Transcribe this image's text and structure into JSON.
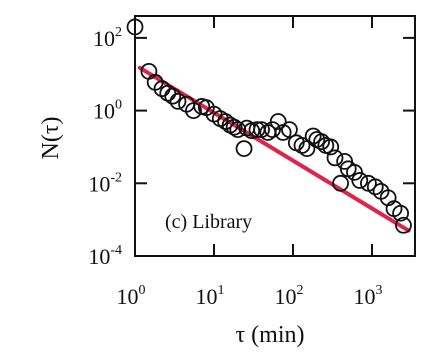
{
  "chart_data": {
    "type": "scatter",
    "panel_label": "(c) Library",
    "xlabel": "τ (min)",
    "ylabel": "N(τ)",
    "xscale": "log",
    "yscale": "log",
    "xlim": [
      1,
      3500
    ],
    "ylim": [
      0.0001,
      400
    ],
    "x_ticks": [
      {
        "value": 1,
        "base": "10",
        "exp": "0"
      },
      {
        "value": 10,
        "base": "10",
        "exp": "1"
      },
      {
        "value": 100,
        "base": "10",
        "exp": "2"
      },
      {
        "value": 1000,
        "base": "10",
        "exp": "3"
      }
    ],
    "y_ticks": [
      {
        "value": 0.0001,
        "base": "10",
        "exp": "-4"
      },
      {
        "value": 0.01,
        "base": "10",
        "exp": "-2"
      },
      {
        "value": 1,
        "base": "10",
        "exp": "0"
      },
      {
        "value": 100,
        "base": "10",
        "exp": "2"
      }
    ],
    "series": [
      {
        "marker": "open-circle",
        "color": "#111111",
        "points": [
          [
            1.0,
            200
          ],
          [
            1.5,
            12
          ],
          [
            1.8,
            6
          ],
          [
            2.2,
            4
          ],
          [
            2.6,
            3
          ],
          [
            3.0,
            2.5
          ],
          [
            3.5,
            1.8
          ],
          [
            4.5,
            1.5
          ],
          [
            5.5,
            1.0
          ],
          [
            7,
            1.3
          ],
          [
            8,
            1.2
          ],
          [
            10,
            0.8
          ],
          [
            12,
            0.6
          ],
          [
            14,
            0.5
          ],
          [
            16,
            0.4
          ],
          [
            18,
            0.35
          ],
          [
            20,
            0.3
          ],
          [
            24,
            0.09
          ],
          [
            26,
            0.33
          ],
          [
            30,
            0.28
          ],
          [
            35,
            0.3
          ],
          [
            40,
            0.3
          ],
          [
            48,
            0.25
          ],
          [
            55,
            0.3
          ],
          [
            65,
            0.5
          ],
          [
            75,
            0.25
          ],
          [
            90,
            0.3
          ],
          [
            110,
            0.13
          ],
          [
            130,
            0.11
          ],
          [
            150,
            0.09
          ],
          [
            180,
            0.2
          ],
          [
            200,
            0.16
          ],
          [
            230,
            0.14
          ],
          [
            260,
            0.11
          ],
          [
            300,
            0.1
          ],
          [
            340,
            0.05
          ],
          [
            400,
            0.01
          ],
          [
            450,
            0.04
          ],
          [
            500,
            0.025
          ],
          [
            600,
            0.02
          ],
          [
            700,
            0.012
          ],
          [
            900,
            0.01
          ],
          [
            1100,
            0.008
          ],
          [
            1300,
            0.006
          ],
          [
            1600,
            0.004
          ],
          [
            1900,
            0.002
          ],
          [
            2300,
            0.0015
          ],
          [
            2500,
            0.0007
          ]
        ]
      },
      {
        "type": "line",
        "role": "fit",
        "color": "#e0234a",
        "points": [
          [
            1.15,
            15
          ],
          [
            2900,
            0.0005
          ]
        ]
      }
    ]
  }
}
